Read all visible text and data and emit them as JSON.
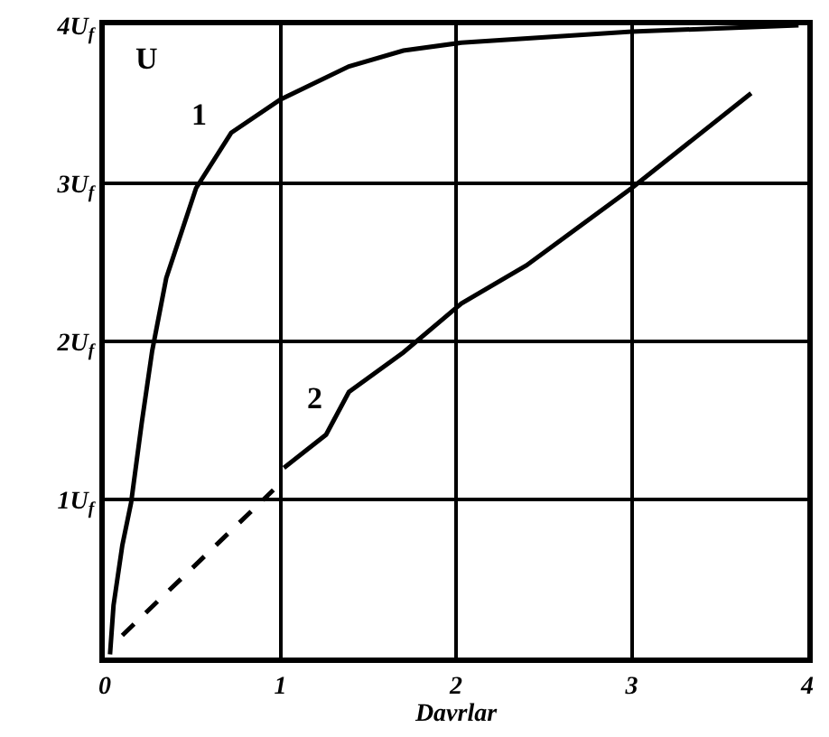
{
  "chart_data": {
    "type": "line",
    "xlabel": "Davrlar",
    "ylabel": "U",
    "series": [
      {
        "name": "1",
        "color": "#000000",
        "line_style": "solid",
        "x": [
          0.03,
          0.05,
          0.1,
          0.15,
          0.21,
          0.27,
          0.35,
          0.52,
          0.72,
          1.0,
          1.39,
          1.7,
          2.03,
          3.0,
          3.95
        ],
        "values": [
          0.02,
          0.33,
          0.71,
          0.98,
          1.48,
          1.94,
          2.4,
          2.97,
          3.32,
          3.53,
          3.74,
          3.84,
          3.89,
          3.96,
          4.0
        ]
      },
      {
        "color": "#000000",
        "line_style": "dashed",
        "x": [
          0.1,
          0.96
        ],
        "values": [
          0.14,
          1.06
        ]
      },
      {
        "name": "2",
        "color": "#000000",
        "line_style": "solid",
        "x": [
          1.02,
          1.26,
          1.39,
          1.7,
          2.03,
          2.4,
          3.0,
          3.68
        ],
        "values": [
          1.2,
          1.41,
          1.68,
          1.93,
          2.24,
          2.48,
          2.97,
          3.57
        ]
      }
    ],
    "xlim": [
      0,
      4
    ],
    "ylim": [
      0,
      4
    ],
    "xticks": [
      0,
      1,
      2,
      3,
      4
    ],
    "yticks": [
      {
        "value": 1,
        "label": "1U$_{f}$"
      },
      {
        "value": 2,
        "label": "2U$_{f}$"
      },
      {
        "value": 3,
        "label": "3U$_{f}$"
      },
      {
        "value": 4,
        "label": "4U$_{f}$"
      }
    ],
    "grid": true,
    "legend": false,
    "marker": "none"
  }
}
